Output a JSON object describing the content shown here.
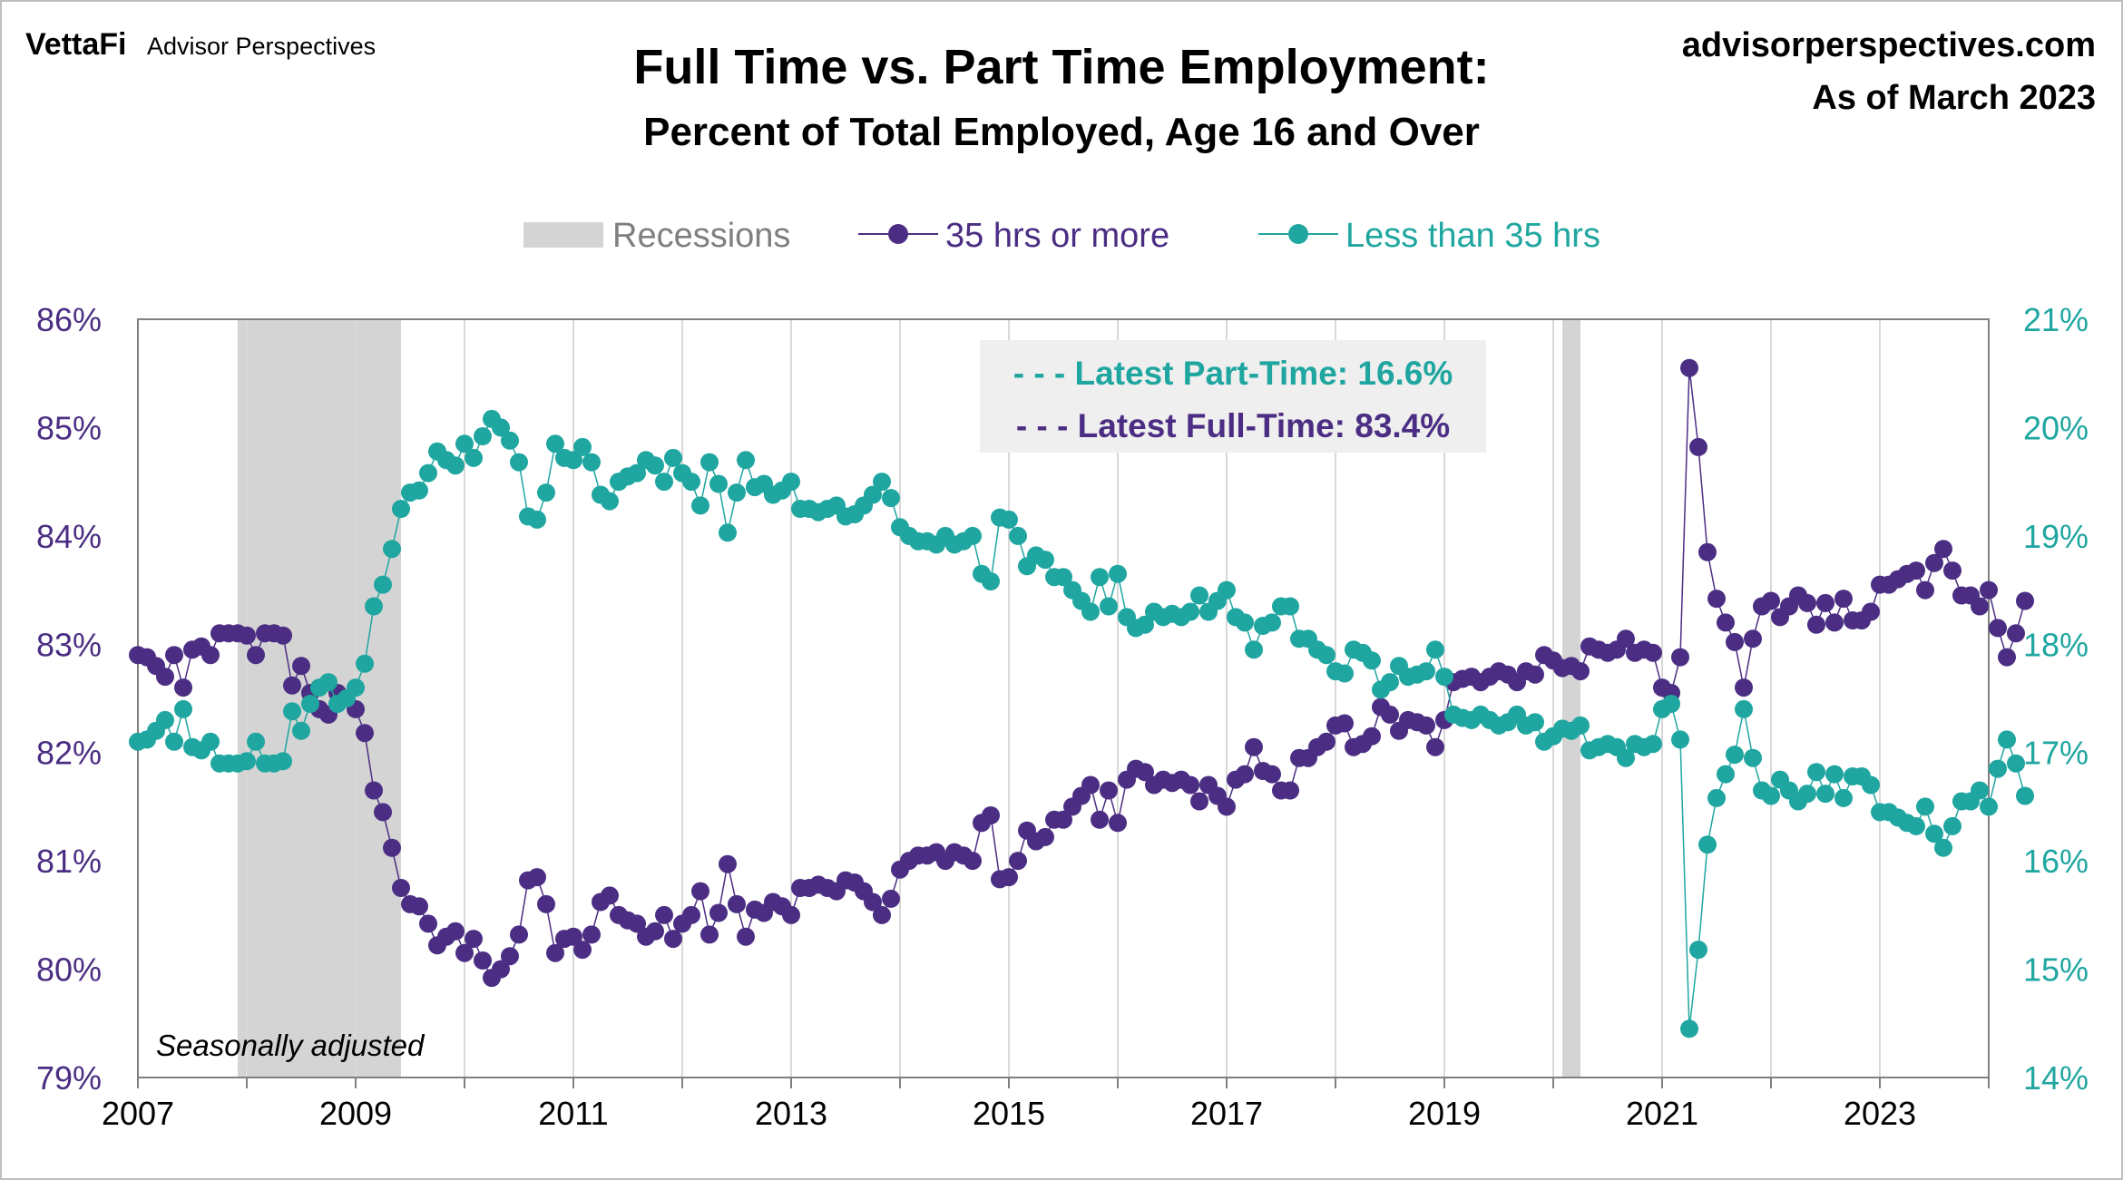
{
  "header": {
    "brand_main": "VettaFi",
    "brand_sub": "Advisor Perspectives",
    "title": "Full Time vs. Part Time Employment:",
    "subtitle": "Percent of Total Employed, Age 16 and Over",
    "source": "advisorperspectives.com",
    "as_of": "As of March 2023"
  },
  "colors": {
    "full_time": "#4b2e83",
    "part_time": "#1fa6a0",
    "recession": "#d4d4d4",
    "grid": "#d9d9d9",
    "axis": "#808080"
  },
  "legend": {
    "recessions": "Recessions",
    "full_time": "35 hrs or more",
    "part_time": "Less than 35 hrs"
  },
  "callout": {
    "part_time": "- - - Latest Part-Time: 16.6%",
    "full_time": "- - - Latest Full-Time: 83.4%"
  },
  "note": "Seasonally adjusted",
  "chart_data": {
    "type": "line",
    "title": "Full Time vs. Part Time Employment:",
    "subtitle": "Percent of Total Employed, Age 16 and Over",
    "x_axis": {
      "range": [
        2007,
        2024
      ],
      "tick_labels": [
        "2007",
        "2009",
        "2011",
        "2013",
        "2015",
        "2017",
        "2019",
        "2021",
        "2023"
      ]
    },
    "y_left": {
      "range": [
        79,
        86
      ],
      "tick_labels": [
        "79%",
        "80%",
        "81%",
        "82%",
        "83%",
        "84%",
        "85%",
        "86%"
      ]
    },
    "y_right": {
      "range": [
        14,
        21
      ],
      "tick_labels": [
        "14%",
        "15%",
        "16%",
        "17%",
        "18%",
        "19%",
        "20%",
        "21%"
      ]
    },
    "grid": "vertical lines at years",
    "legend_position": "top-center",
    "recessions": [
      {
        "start": "2007-12",
        "end": "2009-06"
      },
      {
        "start": "2020-02",
        "end": "2020-04"
      }
    ],
    "series": [
      {
        "name": "35 hrs or more",
        "axis": "left",
        "start": "2007-01",
        "frequency": "monthly",
        "values": [
          82.9,
          82.88,
          82.8,
          82.7,
          82.9,
          82.6,
          82.95,
          82.98,
          82.9,
          83.1,
          83.1,
          83.1,
          83.08,
          82.9,
          83.1,
          83.1,
          83.08,
          82.62,
          82.8,
          82.55,
          82.4,
          82.35,
          82.55,
          82.5,
          82.4,
          82.18,
          81.65,
          81.45,
          81.12,
          80.75,
          80.6,
          80.58,
          80.42,
          80.22,
          80.3,
          80.35,
          80.15,
          80.28,
          80.08,
          79.92,
          80.0,
          80.12,
          80.32,
          80.82,
          80.85,
          80.6,
          80.15,
          80.28,
          80.3,
          80.18,
          80.32,
          80.62,
          80.68,
          80.5,
          80.45,
          80.42,
          80.3,
          80.35,
          80.5,
          80.28,
          80.42,
          80.5,
          80.72,
          80.32,
          80.52,
          80.97,
          80.6,
          80.3,
          80.55,
          80.52,
          80.62,
          80.58,
          80.5,
          80.75,
          80.75,
          80.78,
          80.75,
          80.72,
          80.82,
          80.8,
          80.72,
          80.62,
          80.5,
          80.65,
          80.92,
          81.0,
          81.05,
          81.05,
          81.08,
          81.0,
          81.08,
          81.05,
          81.0,
          81.35,
          81.42,
          80.83,
          80.85,
          81.0,
          81.28,
          81.18,
          81.22,
          81.38,
          81.38,
          81.5,
          81.6,
          81.7,
          81.38,
          81.65,
          81.35,
          81.75,
          81.85,
          81.82,
          81.7,
          81.75,
          81.72,
          81.75,
          81.7,
          81.55,
          81.7,
          81.6,
          81.5,
          81.75,
          81.8,
          82.05,
          81.83,
          81.8,
          81.65,
          81.65,
          81.95,
          81.95,
          82.05,
          82.1,
          82.25,
          82.27,
          82.05,
          82.08,
          82.15,
          82.42,
          82.35,
          82.2,
          82.3,
          82.28,
          82.25,
          82.05,
          82.3,
          82.65,
          82.68,
          82.7,
          82.65,
          82.7,
          82.75,
          82.72,
          82.65,
          82.75,
          82.72,
          82.9,
          82.85,
          82.78,
          82.8,
          82.75,
          82.98,
          82.95,
          82.92,
          82.95,
          83.05,
          82.92,
          82.95,
          82.92,
          82.6,
          82.55,
          82.88,
          85.55,
          84.82,
          83.85,
          83.42,
          83.2,
          83.02,
          82.6,
          83.05,
          83.35,
          83.4,
          83.25,
          83.35,
          83.45,
          83.38,
          83.18,
          83.38,
          83.2,
          83.42,
          83.22,
          83.22,
          83.3,
          83.55,
          83.55,
          83.6,
          83.65,
          83.68,
          83.5,
          83.75,
          83.88,
          83.68,
          83.45,
          83.45,
          83.35,
          83.5,
          83.15,
          82.88,
          83.1,
          83.4
        ]
      },
      {
        "name": "Less than 35 hrs",
        "axis": "right",
        "start": "2007-01",
        "frequency": "monthly",
        "values": [
          17.1,
          17.12,
          17.2,
          17.3,
          17.1,
          17.4,
          17.05,
          17.02,
          17.1,
          16.9,
          16.9,
          16.9,
          16.92,
          17.1,
          16.9,
          16.9,
          16.92,
          17.38,
          17.2,
          17.45,
          17.6,
          17.65,
          17.45,
          17.5,
          17.6,
          17.82,
          18.35,
          18.55,
          18.88,
          19.25,
          19.4,
          19.42,
          19.58,
          19.78,
          19.7,
          19.65,
          19.85,
          19.72,
          19.92,
          20.08,
          20.0,
          19.88,
          19.68,
          19.18,
          19.15,
          19.4,
          19.85,
          19.72,
          19.7,
          19.82,
          19.68,
          19.38,
          19.32,
          19.5,
          19.55,
          19.58,
          19.7,
          19.65,
          19.5,
          19.72,
          19.58,
          19.5,
          19.28,
          19.68,
          19.48,
          19.03,
          19.4,
          19.7,
          19.45,
          19.48,
          19.38,
          19.42,
          19.5,
          19.25,
          19.25,
          19.22,
          19.25,
          19.28,
          19.18,
          19.2,
          19.28,
          19.38,
          19.5,
          19.35,
          19.08,
          19.0,
          18.95,
          18.95,
          18.92,
          19.0,
          18.92,
          18.95,
          19.0,
          18.65,
          18.58,
          19.17,
          19.15,
          19.0,
          18.72,
          18.82,
          18.78,
          18.62,
          18.62,
          18.5,
          18.4,
          18.3,
          18.62,
          18.35,
          18.65,
          18.25,
          18.15,
          18.18,
          18.3,
          18.25,
          18.28,
          18.25,
          18.3,
          18.45,
          18.3,
          18.4,
          18.5,
          18.25,
          18.2,
          17.95,
          18.17,
          18.2,
          18.35,
          18.35,
          18.05,
          18.05,
          17.95,
          17.9,
          17.75,
          17.73,
          17.95,
          17.92,
          17.85,
          17.58,
          17.65,
          17.8,
          17.7,
          17.72,
          17.75,
          17.95,
          17.7,
          17.35,
          17.32,
          17.3,
          17.35,
          17.3,
          17.25,
          17.28,
          17.35,
          17.25,
          17.28,
          17.1,
          17.15,
          17.22,
          17.2,
          17.25,
          17.02,
          17.05,
          17.08,
          17.05,
          16.95,
          17.08,
          17.05,
          17.08,
          17.4,
          17.45,
          17.12,
          14.45,
          15.18,
          16.15,
          16.58,
          16.8,
          16.98,
          17.4,
          16.95,
          16.65,
          16.6,
          16.75,
          16.65,
          16.55,
          16.62,
          16.82,
          16.62,
          16.8,
          16.58,
          16.78,
          16.78,
          16.7,
          16.45,
          16.45,
          16.4,
          16.35,
          16.32,
          16.5,
          16.25,
          16.12,
          16.32,
          16.55,
          16.55,
          16.65,
          16.5,
          16.85,
          17.12,
          16.9,
          16.6
        ]
      }
    ]
  }
}
